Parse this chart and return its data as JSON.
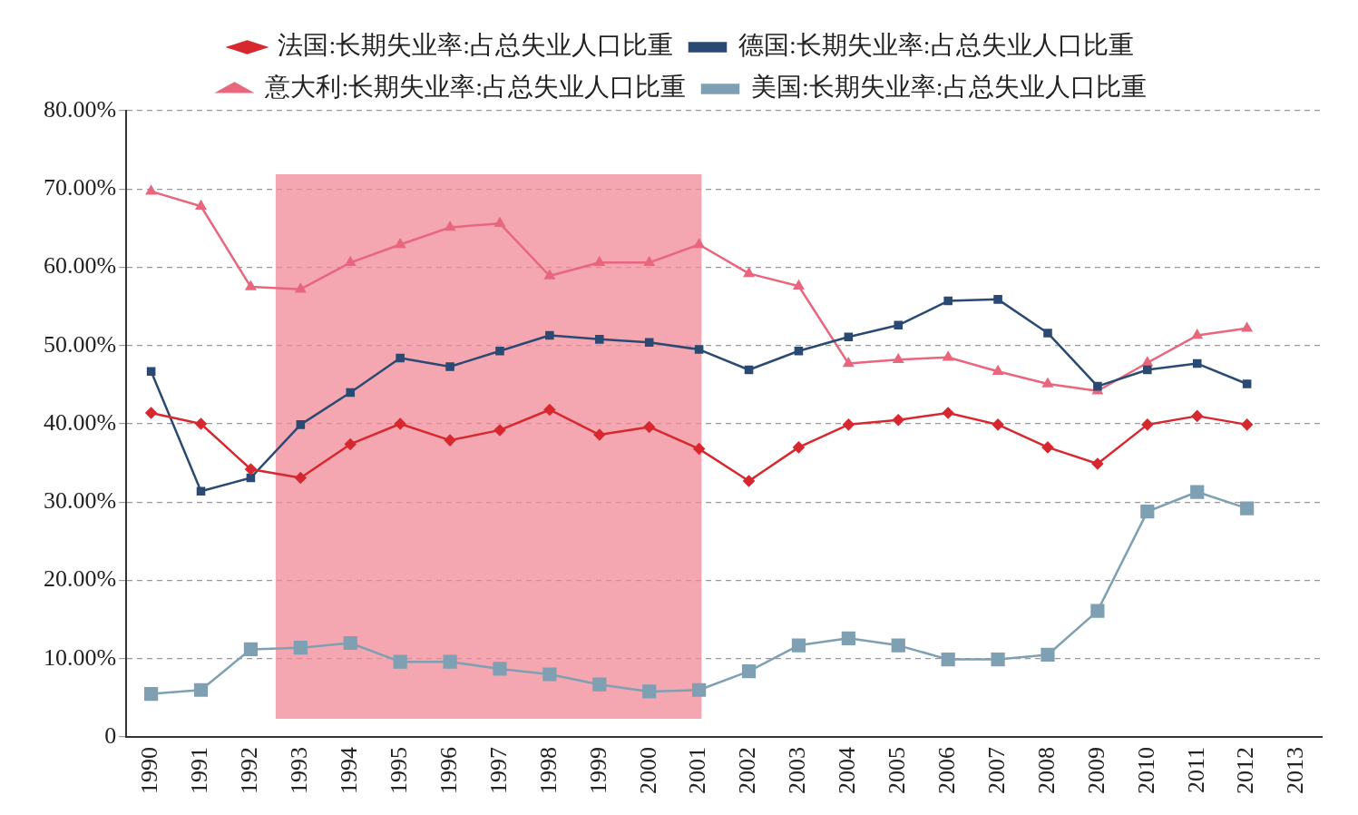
{
  "chart_data": {
    "type": "line",
    "x": [
      1990,
      1991,
      1992,
      1993,
      1994,
      1995,
      1996,
      1997,
      1998,
      1999,
      2000,
      2001,
      2002,
      2003,
      2004,
      2005,
      2006,
      2007,
      2008,
      2009,
      2010,
      2011,
      2012
    ],
    "xlim": [
      1989.5,
      2013.5
    ],
    "xticks": [
      1990,
      1991,
      1992,
      1993,
      1994,
      1995,
      1996,
      1997,
      1998,
      1999,
      2000,
      2001,
      2002,
      2003,
      2004,
      2005,
      2006,
      2007,
      2008,
      2009,
      2010,
      2011,
      2012,
      2013
    ],
    "ylim": [
      0,
      80
    ],
    "yticks": [
      {
        "value": 0,
        "label": "0"
      },
      {
        "value": 10,
        "label": "10.00%"
      },
      {
        "value": 20,
        "label": "20.00%"
      },
      {
        "value": 30,
        "label": "30.00%"
      },
      {
        "value": 40,
        "label": "40.00%"
      },
      {
        "value": 50,
        "label": "50.00%"
      },
      {
        "value": 60,
        "label": "60.00%"
      },
      {
        "value": 70,
        "label": "70.00%"
      },
      {
        "value": 80,
        "label": "80.00%"
      }
    ],
    "grid": "y",
    "legend": "top",
    "series": [
      {
        "name": "法国:长期失业率:占总失业人口比重",
        "color": "#d7282f",
        "marker": "diamond",
        "values": [
          41.4,
          40.0,
          34.2,
          33.1,
          37.4,
          40.0,
          37.9,
          39.2,
          41.8,
          38.6,
          39.6,
          36.8,
          32.7,
          37.0,
          39.9,
          40.5,
          41.4,
          39.9,
          37.0,
          34.9,
          39.9,
          41.0,
          39.9
        ]
      },
      {
        "name": "德国:长期失业率:占总失业人口比重",
        "color": "#2b4a73",
        "marker": "square",
        "values": [
          46.7,
          31.4,
          33.1,
          39.9,
          44.0,
          48.4,
          47.3,
          49.3,
          51.3,
          50.8,
          50.4,
          49.5,
          46.9,
          49.3,
          51.1,
          52.6,
          55.7,
          55.9,
          51.6,
          44.8,
          46.9,
          47.7,
          45.1
        ]
      },
      {
        "name": "意大利:长期失业率:占总失业人口比重",
        "color": "#e8667e",
        "marker": "triangle",
        "values": [
          69.7,
          67.8,
          57.5,
          57.2,
          60.6,
          62.9,
          65.1,
          65.6,
          58.9,
          60.6,
          60.6,
          62.9,
          59.2,
          57.6,
          47.7,
          48.2,
          48.5,
          46.7,
          45.1,
          44.2,
          47.8,
          51.3,
          52.2
        ]
      },
      {
        "name": "美国:长期失业率:占总失业人口比重",
        "color": "#7fa0b3",
        "marker": "square",
        "values": [
          5.5,
          6.0,
          11.2,
          11.4,
          12.0,
          9.6,
          9.6,
          8.7,
          8.0,
          6.7,
          5.8,
          6.0,
          8.4,
          11.7,
          12.6,
          11.7,
          9.9,
          9.9,
          10.5,
          16.1,
          28.8,
          31.3,
          29.2
        ]
      }
    ],
    "bands": [
      {
        "axis": "x",
        "from": 1992.5,
        "to": 2001.05,
        "color": "#f08a96"
      }
    ]
  }
}
